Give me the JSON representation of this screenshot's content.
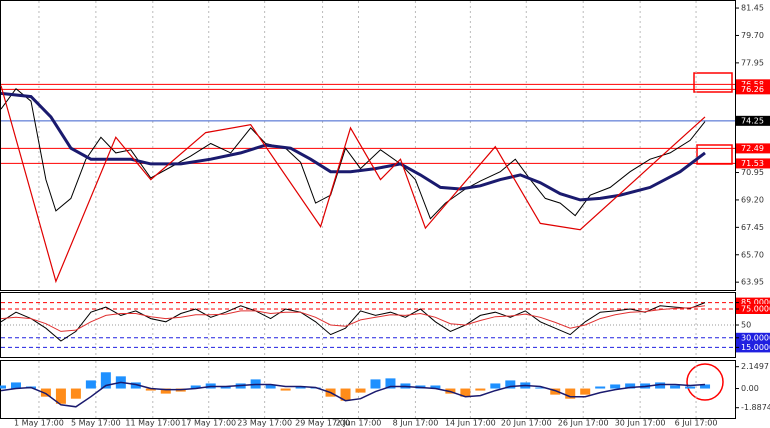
{
  "chart_data": [
    {
      "type": "line",
      "xlim": [
        0,
        735
      ],
      "ylim": [
        63.45,
        81.9
      ],
      "yticks": [
        81.45,
        {
          "value": 79.7,
          "label": "79.70"
        },
        77.95,
        70.95,
        {
          "value": 69.2,
          "label": "69.20"
        },
        67.45,
        {
          "value": 65.7,
          "label": "65.70"
        },
        63.95
      ],
      "levels": [
        76.58,
        76.26,
        74.25,
        72.49,
        71.53
      ],
      "level_colors": [
        "#ff0000",
        "#ff0000",
        "#000000",
        "#ff0000",
        "#ff0000"
      ],
      "level_line_colors": [
        "#ff0000",
        "#ff0000",
        "#3a5fcd",
        "#ff0000",
        "#ff0000"
      ],
      "grid": true,
      "series": [
        {
          "color": "#000000",
          "width": 1,
          "x": [
            0,
            15,
            30,
            45,
            55,
            70,
            85,
            100,
            115,
            130,
            150,
            170,
            190,
            210,
            230,
            250,
            265,
            285,
            300,
            315,
            330,
            345,
            360,
            380,
            400,
            415,
            430,
            445,
            465,
            480,
            500,
            515,
            530,
            545,
            560,
            575,
            590,
            610,
            630,
            650,
            670,
            690,
            705
          ],
          "values": [
            75.0,
            76.3,
            75.5,
            70.5,
            68.5,
            69.3,
            71.8,
            73.2,
            72.2,
            72.4,
            70.6,
            71.3,
            72.0,
            72.8,
            72.2,
            73.8,
            72.8,
            72.5,
            71.6,
            69.0,
            69.5,
            72.5,
            71.2,
            72.4,
            71.5,
            70.5,
            68.0,
            69.0,
            69.9,
            70.4,
            71.0,
            71.8,
            70.5,
            69.3,
            69.0,
            68.2,
            69.5,
            70.0,
            71.0,
            71.8,
            72.2,
            73.0,
            74.2
          ]
        },
        {
          "color": "#1a1a6e",
          "width": 3,
          "x": [
            0,
            30,
            50,
            70,
            90,
            110,
            130,
            150,
            180,
            210,
            240,
            265,
            290,
            310,
            330,
            350,
            375,
            400,
            420,
            440,
            460,
            480,
            500,
            520,
            540,
            560,
            580,
            600,
            620,
            650,
            680,
            705
          ],
          "values": [
            76.0,
            75.8,
            74.5,
            72.5,
            71.8,
            71.8,
            71.8,
            71.5,
            71.5,
            71.8,
            72.2,
            72.7,
            72.5,
            71.8,
            71.0,
            71.0,
            71.2,
            71.5,
            70.8,
            70.0,
            69.9,
            70.1,
            70.5,
            70.8,
            70.3,
            69.6,
            69.2,
            69.3,
            69.5,
            70.0,
            71.0,
            72.2
          ]
        },
        {
          "color": "#e00000",
          "width": 1.2,
          "x": [
            0,
            55,
            115,
            150,
            205,
            250,
            320,
            350,
            380,
            400,
            425,
            495,
            540,
            580,
            705
          ],
          "values": [
            76.5,
            64.0,
            73.2,
            70.5,
            73.5,
            74.0,
            67.5,
            73.8,
            70.5,
            71.8,
            67.4,
            72.6,
            67.7,
            67.3,
            74.5
          ]
        }
      ]
    },
    {
      "type": "line",
      "xlim": [
        0,
        735
      ],
      "ylim": [
        0,
        100
      ],
      "yticks": [
        {
          "value": 85,
          "label": "85.0000"
        },
        {
          "value": 75,
          "label": "75.0000"
        },
        50,
        {
          "value": 30,
          "label": "30.0000"
        },
        {
          "value": 15,
          "label": "15.0000"
        }
      ],
      "ytick_colors": [
        "#ff0000",
        "#ff0000",
        "none",
        "#2020e0",
        "#2020e0"
      ],
      "grid": true,
      "series": [
        {
          "color": "#000000",
          "width": 1,
          "x": [
            0,
            15,
            30,
            45,
            60,
            75,
            90,
            105,
            120,
            135,
            150,
            165,
            180,
            195,
            210,
            225,
            240,
            255,
            270,
            285,
            300,
            315,
            330,
            345,
            360,
            375,
            390,
            405,
            420,
            435,
            450,
            465,
            480,
            495,
            510,
            525,
            540,
            555,
            570,
            585,
            600,
            615,
            630,
            645,
            660,
            675,
            690,
            705
          ],
          "values": [
            55,
            70,
            60,
            45,
            25,
            40,
            70,
            78,
            65,
            72,
            60,
            55,
            68,
            75,
            62,
            70,
            80,
            72,
            60,
            75,
            70,
            55,
            35,
            45,
            72,
            65,
            70,
            62,
            75,
            55,
            40,
            50,
            65,
            70,
            62,
            72,
            55,
            45,
            35,
            55,
            70,
            72,
            75,
            70,
            80,
            78,
            76,
            85
          ]
        },
        {
          "color": "#e03030",
          "width": 1,
          "x": [
            0,
            15,
            30,
            45,
            60,
            75,
            90,
            105,
            120,
            135,
            150,
            165,
            180,
            195,
            210,
            225,
            240,
            255,
            270,
            285,
            300,
            315,
            330,
            345,
            360,
            375,
            390,
            405,
            420,
            435,
            450,
            465,
            480,
            495,
            510,
            525,
            540,
            555,
            570,
            585,
            600,
            615,
            630,
            645,
            660,
            675,
            690,
            705
          ],
          "values": [
            60,
            62,
            60,
            52,
            40,
            42,
            55,
            65,
            68,
            68,
            63,
            60,
            62,
            66,
            66,
            67,
            72,
            72,
            68,
            70,
            70,
            62,
            50,
            48,
            58,
            62,
            66,
            65,
            68,
            62,
            52,
            50,
            57,
            63,
            64,
            67,
            62,
            54,
            45,
            50,
            60,
            66,
            70,
            71,
            74,
            76,
            77,
            80
          ]
        }
      ]
    },
    {
      "type": "bar",
      "xlim": [
        0,
        735
      ],
      "ylim": [
        -2.9,
        2.71
      ],
      "yticks": [
        2.1497,
        {
          "value": 0,
          "label": "0.00"
        },
        -1.8874
      ],
      "xticks": [
        {
          "value": 38,
          "label": "1 May 17:00"
        },
        {
          "value": 95,
          "label": "5 May 17:00"
        },
        {
          "value": 152,
          "label": "11 May 17:00"
        },
        {
          "value": 208,
          "label": "17 May 17:00"
        },
        {
          "value": 264,
          "label": "23 May 17:00"
        },
        {
          "value": 322,
          "label": "29 May 17:00"
        },
        {
          "value": 358,
          "label": "2 Jun 17:00"
        },
        {
          "value": 415,
          "label": "8 Jun 17:00"
        },
        {
          "value": 470,
          "label": "14 Jun 17:00"
        },
        {
          "value": 526,
          "label": "20 Jun 17:00"
        },
        {
          "value": 583,
          "label": "26 Jun 17:00"
        },
        {
          "value": 640,
          "label": "30 Jun 17:00"
        },
        {
          "value": 696,
          "label": "6 Jul 17:00"
        }
      ],
      "positive_color": "#1e90ff",
      "negative_color": "#ff8c1a",
      "grid": true,
      "series": [
        {
          "type": "bar",
          "x": [
            0,
            15,
            30,
            45,
            60,
            75,
            90,
            105,
            120,
            135,
            150,
            165,
            180,
            195,
            210,
            225,
            240,
            255,
            270,
            285,
            300,
            315,
            330,
            345,
            360,
            375,
            390,
            405,
            420,
            435,
            450,
            465,
            480,
            495,
            510,
            525,
            540,
            555,
            570,
            585,
            600,
            615,
            630,
            645,
            660,
            675,
            690,
            705
          ],
          "values": [
            0.3,
            0.6,
            0.2,
            -0.8,
            -1.5,
            -1.0,
            0.8,
            1.6,
            1.2,
            0.6,
            -0.2,
            -0.5,
            -0.3,
            0.3,
            0.5,
            0.2,
            0.5,
            0.9,
            0.4,
            -0.2,
            0.2,
            0.1,
            -0.8,
            -1.2,
            -0.4,
            0.9,
            1.0,
            0.5,
            0.3,
            0.3,
            -0.5,
            -0.8,
            -0.2,
            0.5,
            0.8,
            0.6,
            0.1,
            -0.6,
            -1.0,
            -0.6,
            0.2,
            0.4,
            0.5,
            0.5,
            0.6,
            0.3,
            0.2,
            0.4
          ]
        },
        {
          "type": "line",
          "color": "#1a1a6e",
          "width": 1.5,
          "x": [
            0,
            15,
            30,
            45,
            60,
            75,
            90,
            105,
            120,
            135,
            150,
            165,
            180,
            195,
            210,
            225,
            240,
            255,
            270,
            285,
            300,
            315,
            330,
            345,
            360,
            375,
            390,
            405,
            420,
            435,
            450,
            465,
            480,
            495,
            510,
            525,
            540,
            555,
            570,
            585,
            600,
            615,
            630,
            645,
            660,
            675,
            690,
            705
          ],
          "values": [
            -0.2,
            0.0,
            0.1,
            -0.5,
            -1.6,
            -1.8,
            -0.8,
            0.3,
            0.6,
            0.4,
            0.0,
            -0.1,
            -0.1,
            0.0,
            0.2,
            0.2,
            0.3,
            0.4,
            0.4,
            0.2,
            0.2,
            0.1,
            -0.4,
            -1.2,
            -1.0,
            -0.3,
            0.2,
            0.2,
            0.1,
            0.0,
            -0.3,
            -0.8,
            -0.7,
            -0.2,
            0.2,
            0.3,
            0.2,
            -0.2,
            -0.8,
            -0.8,
            -0.4,
            -0.1,
            0.1,
            0.2,
            0.4,
            0.4,
            0.3,
            0.4
          ]
        }
      ]
    }
  ]
}
